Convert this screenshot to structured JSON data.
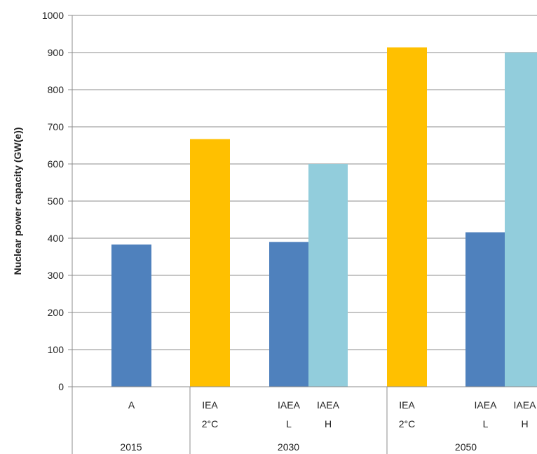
{
  "chart_data": {
    "type": "bar",
    "ylabel": "Nuclear power capacity (GW(e))",
    "xlabel": "",
    "title": "",
    "ylim": [
      0,
      1000
    ],
    "yticks": [
      0,
      100,
      200,
      300,
      400,
      500,
      600,
      700,
      800,
      900,
      1000
    ],
    "grid": "horizontal",
    "legend": "none",
    "groups": [
      {
        "label": "2015",
        "bars": [
          {
            "label1": "A",
            "label2": "",
            "value": 383,
            "color": "#4f81bd"
          }
        ]
      },
      {
        "label": "2030",
        "bars": [
          {
            "label1": "IEA",
            "label2": "2°C",
            "value": 667,
            "color": "#ffc000"
          },
          {
            "label1": "IAEA",
            "label2": "L",
            "value": 390,
            "color": "#4f81bd"
          },
          {
            "label1": "IAEA",
            "label2": "H",
            "value": 600,
            "color": "#92cddc"
          }
        ]
      },
      {
        "label": "2050",
        "bars": [
          {
            "label1": "IEA",
            "label2": "2°C",
            "value": 914,
            "color": "#ffc000"
          },
          {
            "label1": "IAEA",
            "label2": "L",
            "value": 416,
            "color": "#4f81bd"
          },
          {
            "label1": "IAEA",
            "label2": "H",
            "value": 900,
            "color": "#92cddc"
          }
        ]
      }
    ]
  }
}
